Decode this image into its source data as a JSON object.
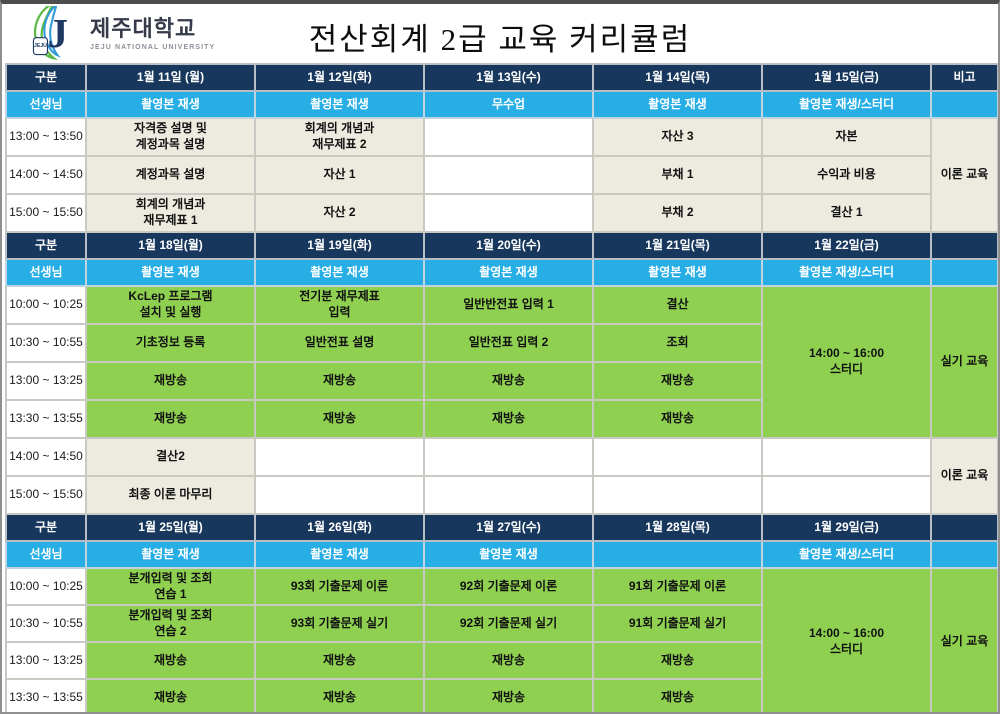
{
  "page": {
    "title": "전산회계 2급 교육 커리큘럼",
    "logo": {
      "university_kr": "제주대학교",
      "university_en": "JEJU NATIONAL UNIVERSITY",
      "emblem_label": "JEJU"
    }
  },
  "colors": {
    "navy": "#17375d",
    "light_blue": "#27aee4",
    "green": "#8fd051",
    "cream": "#edebe0",
    "grid": "#c9c9c3"
  },
  "weeks": [
    {
      "corner_label": "구분",
      "teacher_label": "선생님",
      "note_header": "비고",
      "days": [
        "1월 11일 (월)",
        "1월 12일(화)",
        "1월 13일(수)",
        "1월 14일(목)",
        "1월 15일(금)"
      ],
      "teacher_cells": [
        "촬영본 재생",
        "촬영본 재생",
        "무수업",
        "촬영본 재생",
        "촬영본 재생/스터디"
      ],
      "rows": [
        {
          "time": "13:00 ~ 13:50",
          "cells": [
            {
              "t": "자격증 설명 및\n계정과목 설명",
              "s": "cream"
            },
            {
              "t": "회계의 개념과\n재무제표 2",
              "s": "cream"
            },
            {
              "t": "",
              "s": "white"
            },
            {
              "t": "자산 3",
              "s": "cream"
            },
            {
              "t": "자본",
              "s": "cream"
            },
            {
              "t": "이론 교육",
              "s": "cream",
              "rs": 3,
              "note": true
            }
          ]
        },
        {
          "time": "14:00 ~ 14:50",
          "cells": [
            {
              "t": "계정과목 설명",
              "s": "cream"
            },
            {
              "t": "자산 1",
              "s": "cream"
            },
            {
              "t": "",
              "s": "white"
            },
            {
              "t": "부채 1",
              "s": "cream"
            },
            {
              "t": "수익과 비용",
              "s": "cream"
            }
          ]
        },
        {
          "time": "15:00 ~ 15:50",
          "cells": [
            {
              "t": "회계의 개념과\n재무제표 1",
              "s": "cream"
            },
            {
              "t": "자산 2",
              "s": "cream"
            },
            {
              "t": "",
              "s": "white"
            },
            {
              "t": "부채 2",
              "s": "cream"
            },
            {
              "t": "결산 1",
              "s": "cream"
            }
          ]
        }
      ]
    },
    {
      "corner_label": "구분",
      "teacher_label": "선생님",
      "note_header": "",
      "days": [
        "1월 18일(월)",
        "1월 19일(화)",
        "1월 20일(수)",
        "1월 21일(목)",
        "1월 22일(금)"
      ],
      "teacher_cells": [
        "촬영본 재생",
        "촬영본 재생",
        "촬영본 재생",
        "촬영본 재생",
        "촬영본 재생/스터디"
      ],
      "rows": [
        {
          "time": "10:00 ~ 10:25",
          "cells": [
            {
              "t": "KcLep 프로그램\n설치 및 실행",
              "s": "green"
            },
            {
              "t": "전기분 재무제표\n입력",
              "s": "green"
            },
            {
              "t": "일반반전표 입력 1",
              "s": "green"
            },
            {
              "t": "결산",
              "s": "green"
            },
            {
              "t": "14:00 ~ 16:00\n스터디",
              "s": "green",
              "rs": 4
            },
            {
              "t": "실기 교육",
              "s": "green",
              "rs": 4,
              "note": true
            }
          ]
        },
        {
          "time": "10:30 ~ 10:55",
          "cells": [
            {
              "t": "기초정보 등록",
              "s": "green"
            },
            {
              "t": "일반전표 설명",
              "s": "green"
            },
            {
              "t": "일반전표 입력 2",
              "s": "green"
            },
            {
              "t": "조회",
              "s": "green"
            }
          ]
        },
        {
          "time": "13:00 ~ 13:25",
          "cells": [
            {
              "t": "재방송",
              "s": "green"
            },
            {
              "t": "재방송",
              "s": "green"
            },
            {
              "t": "재방송",
              "s": "green"
            },
            {
              "t": "재방송",
              "s": "green"
            }
          ]
        },
        {
          "time": "13:30 ~ 13:55",
          "cells": [
            {
              "t": "재방송",
              "s": "green"
            },
            {
              "t": "재방송",
              "s": "green"
            },
            {
              "t": "재방송",
              "s": "green"
            },
            {
              "t": "재방송",
              "s": "green"
            }
          ]
        },
        {
          "time": "14:00 ~ 14:50",
          "cells": [
            {
              "t": "결산2",
              "s": "cream"
            },
            {
              "t": "",
              "s": "white"
            },
            {
              "t": "",
              "s": "white"
            },
            {
              "t": "",
              "s": "white"
            },
            {
              "t": "",
              "s": "white"
            },
            {
              "t": "이론 교육",
              "s": "cream",
              "rs": 2,
              "note": true
            }
          ]
        },
        {
          "time": "15:00 ~ 15:50",
          "cells": [
            {
              "t": "최종 이론 마무리",
              "s": "cream"
            },
            {
              "t": "",
              "s": "white"
            },
            {
              "t": "",
              "s": "white"
            },
            {
              "t": "",
              "s": "white"
            },
            {
              "t": "",
              "s": "white"
            }
          ]
        }
      ]
    },
    {
      "corner_label": "구분",
      "teacher_label": "선생님",
      "note_header": "",
      "days": [
        "1월 25일(월)",
        "1월 26일(화)",
        "1월 27일(수)",
        "1월 28일(목)",
        "1월 29일(금)"
      ],
      "teacher_cells": [
        "촬영본 재생",
        "촬영본 재생",
        "촬영본 재생",
        "",
        "촬영본 재생/스터디"
      ],
      "rows": [
        {
          "time": "10:00 ~ 10:25",
          "cells": [
            {
              "t": "분개입력 및 조회\n연습 1",
              "s": "green"
            },
            {
              "t": "93회 기출문제 이론",
              "s": "green"
            },
            {
              "t": "92회 기출문제 이론",
              "s": "green"
            },
            {
              "t": "91회 기출문제 이론",
              "s": "green"
            },
            {
              "t": "14:00 ~ 16:00\n스터디",
              "s": "green",
              "rs": 4
            },
            {
              "t": "실기 교육",
              "s": "green",
              "rs": 4,
              "note": true
            }
          ]
        },
        {
          "time": "10:30 ~ 10:55",
          "cells": [
            {
              "t": "분개입력 및 조회\n연습 2",
              "s": "green"
            },
            {
              "t": "93회 기출문제 실기",
              "s": "green"
            },
            {
              "t": "92회 기출문제 실기",
              "s": "green"
            },
            {
              "t": "91회 기출문제 실기",
              "s": "green"
            }
          ]
        },
        {
          "time": "13:00 ~ 13:25",
          "cells": [
            {
              "t": "재방송",
              "s": "green"
            },
            {
              "t": "재방송",
              "s": "green"
            },
            {
              "t": "재방송",
              "s": "green"
            },
            {
              "t": "재방송",
              "s": "green"
            }
          ]
        },
        {
          "time": "13:30 ~ 13:55",
          "cells": [
            {
              "t": "재방송",
              "s": "green"
            },
            {
              "t": "재방송",
              "s": "green"
            },
            {
              "t": "재방송",
              "s": "green"
            },
            {
              "t": "재방송",
              "s": "green"
            }
          ]
        }
      ]
    }
  ]
}
